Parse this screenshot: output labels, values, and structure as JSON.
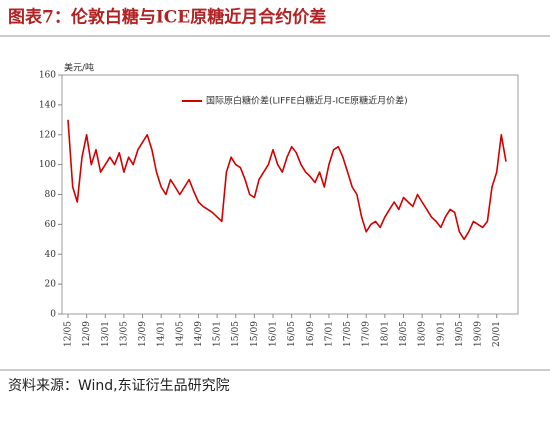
{
  "chart_data": {
    "type": "line",
    "title": "图表7：伦敦白糖与ICE原糖近月合约价差",
    "y_unit": "美元/吨",
    "source": "资料来源：Wind,东证衍生品研究院",
    "categories": [
      "12/05",
      null,
      null,
      null,
      "12/09",
      null,
      null,
      null,
      "13/01",
      null,
      null,
      null,
      "13/05",
      null,
      null,
      null,
      "13/09",
      null,
      null,
      null,
      "14/01",
      null,
      null,
      null,
      "14/05",
      null,
      null,
      null,
      "14/09",
      null,
      null,
      null,
      "15/01",
      null,
      null,
      null,
      "15/05",
      null,
      null,
      null,
      "15/09",
      null,
      null,
      null,
      "16/01",
      null,
      null,
      null,
      "16/05",
      null,
      null,
      null,
      "16/09",
      null,
      null,
      null,
      "17/01",
      null,
      null,
      null,
      "17/05",
      null,
      null,
      null,
      "17/09",
      null,
      null,
      null,
      "18/01",
      null,
      null,
      null,
      "18/05",
      null,
      null,
      null,
      "18/09",
      null,
      null,
      null,
      "19/01",
      null,
      null,
      null,
      "19/05",
      null,
      null,
      null,
      "19/09",
      null,
      null,
      null,
      "20/01",
      null,
      null
    ],
    "series": [
      {
        "name": "国际原白糖价差(LIFFE白糖近月-ICE原糖近月价差)",
        "color": "#d40000",
        "values": [
          130,
          85,
          75,
          105,
          120,
          100,
          110,
          95,
          100,
          105,
          100,
          108,
          95,
          105,
          100,
          110,
          115,
          120,
          110,
          95,
          85,
          80,
          90,
          85,
          80,
          85,
          90,
          82,
          75,
          72,
          70,
          68,
          65,
          62,
          95,
          105,
          100,
          98,
          90,
          80,
          78,
          90,
          95,
          100,
          110,
          100,
          95,
          105,
          112,
          108,
          100,
          95,
          92,
          88,
          95,
          85,
          100,
          110,
          112,
          105,
          95,
          85,
          80,
          65,
          55,
          60,
          62,
          58,
          65,
          70,
          75,
          70,
          78,
          75,
          72,
          80,
          75,
          70,
          65,
          62,
          58,
          65,
          70,
          68,
          55,
          50,
          55,
          62,
          60,
          58,
          62,
          85,
          95,
          120,
          102
        ]
      }
    ],
    "ylim": [
      0,
      160
    ],
    "yticks": [
      0,
      20,
      40,
      60,
      80,
      100,
      120,
      140,
      160
    ],
    "legend": "top-left"
  }
}
